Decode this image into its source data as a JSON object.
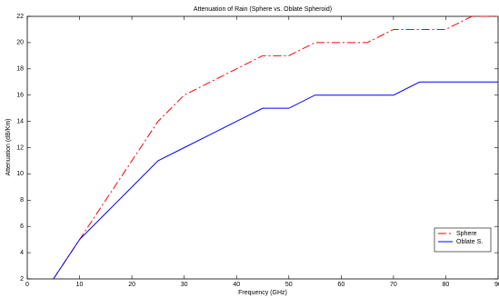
{
  "chart_data": {
    "type": "line",
    "title": "Attenuation of Rain (Sphere vs. Oblate Spheroid)",
    "x_label": "Frequency (GHz)",
    "y_label": "Attenuation (dB/Km)",
    "x": [
      5,
      10,
      15,
      20,
      25,
      30,
      35,
      40,
      45,
      50,
      55,
      60,
      65,
      70,
      75,
      80,
      85,
      90
    ],
    "series": [
      {
        "name": "Sphere",
        "color": "#ff0000",
        "dash": "dashdot",
        "values": [
          2,
          5,
          8,
          11,
          14,
          16,
          17,
          18,
          19,
          19,
          20,
          20,
          20,
          21,
          21,
          21,
          22,
          22
        ]
      },
      {
        "name": "Oblate S.",
        "color": "#0000ff",
        "dash": "solid",
        "values": [
          2,
          5,
          7,
          9,
          11,
          12,
          13,
          14,
          15,
          15,
          16,
          16,
          16,
          16,
          17,
          17,
          17,
          17
        ]
      }
    ],
    "xlim": [
      0,
      90
    ],
    "xticks": [
      0,
      10,
      20,
      30,
      40,
      50,
      60,
      70,
      80,
      90
    ],
    "ylim": [
      2,
      22
    ],
    "yticks": [
      2,
      4,
      6,
      8,
      10,
      12,
      14,
      16,
      18,
      20,
      22
    ],
    "legend": "lower right",
    "grid": false
  }
}
